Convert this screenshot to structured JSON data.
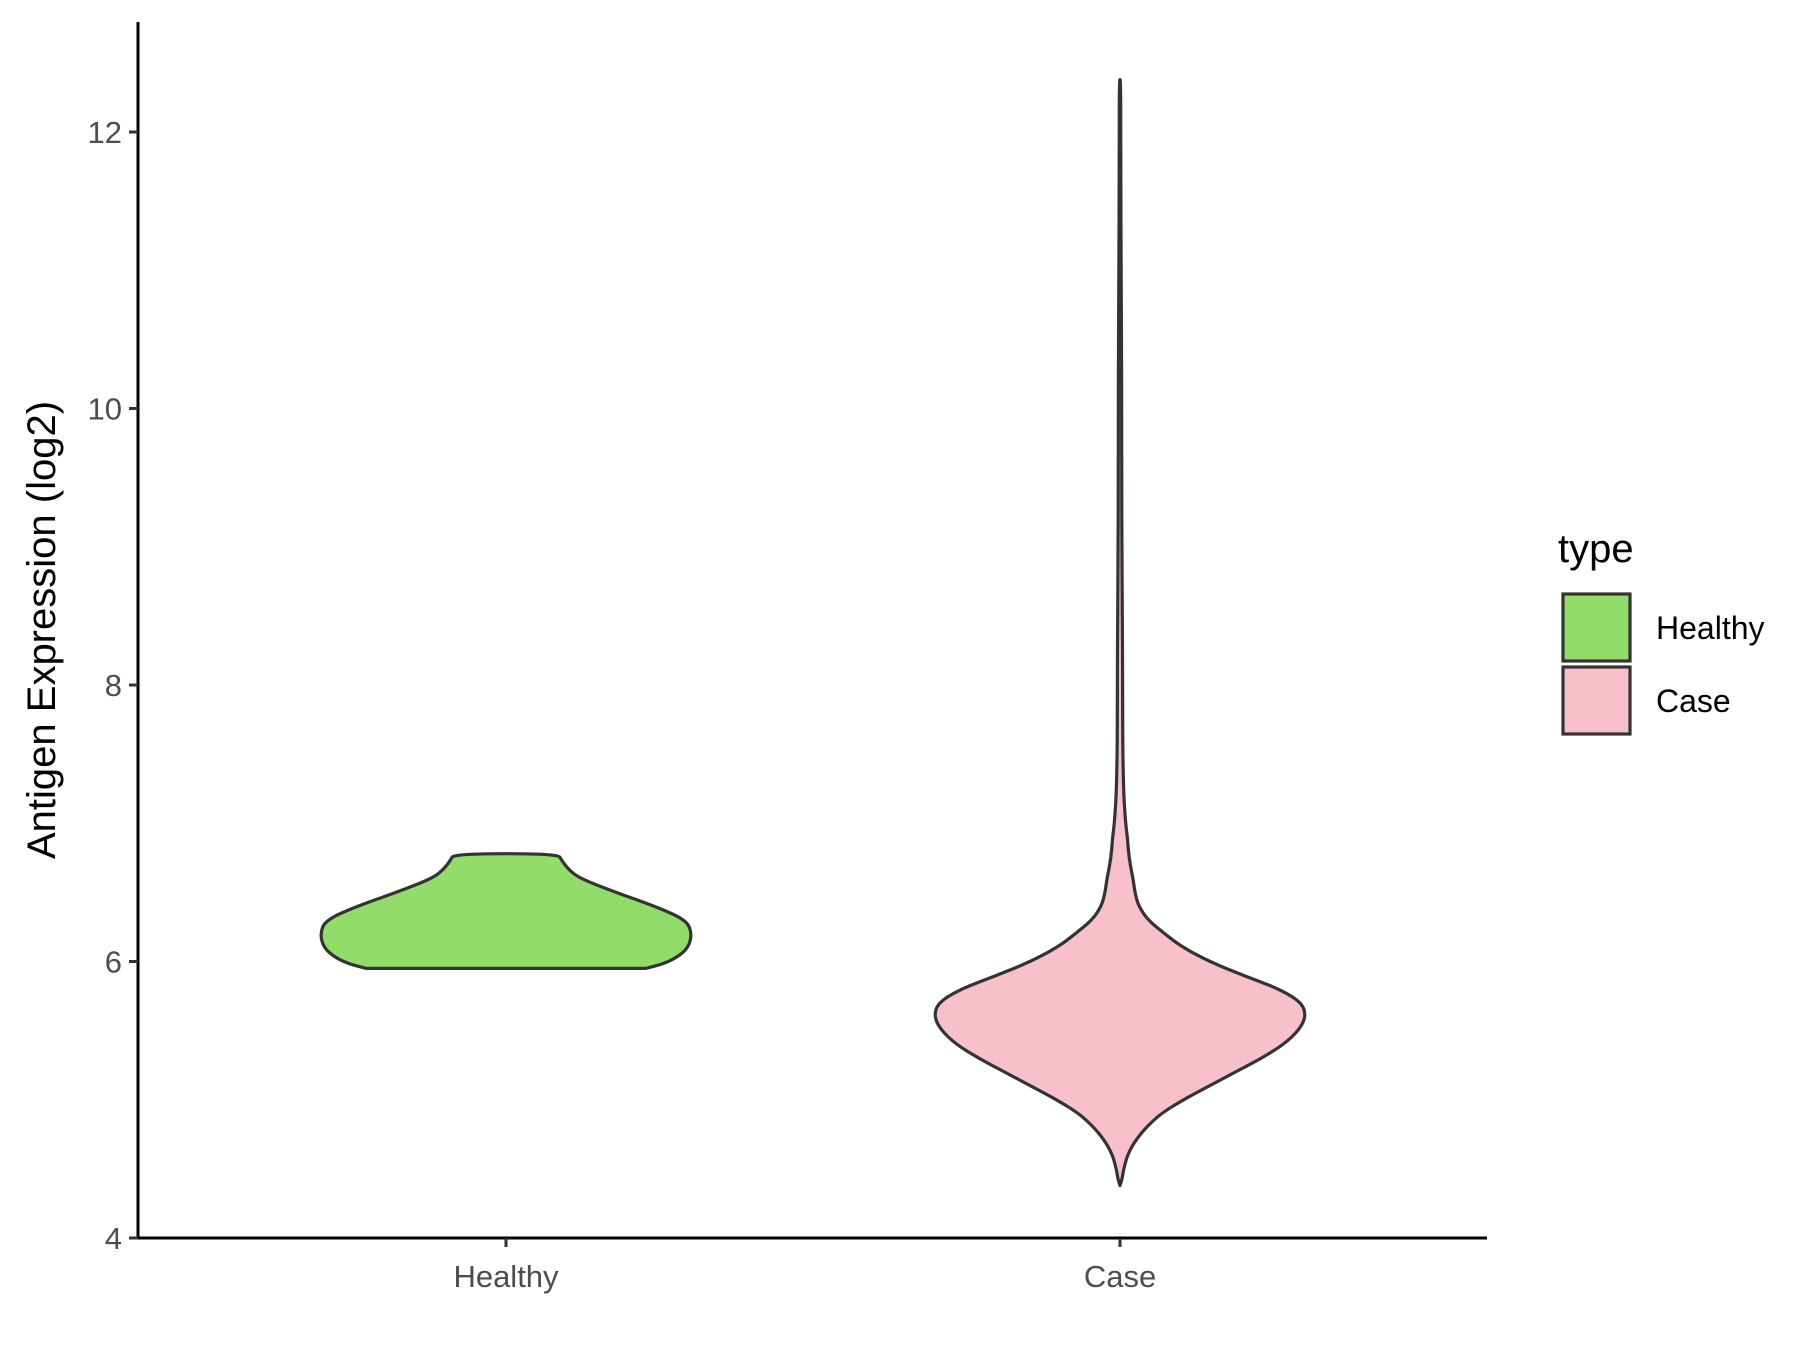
{
  "chart_data": {
    "type": "violin",
    "title": "",
    "xlabel": "",
    "ylabel": "Antigen Expression (log2)",
    "ylim": [
      4,
      12.8
    ],
    "y_ticks": [
      4,
      6,
      8,
      10,
      12
    ],
    "y_tick_labels": [
      "4",
      "6",
      "8",
      "10",
      "12"
    ],
    "categories": [
      "Healthy",
      "Case"
    ],
    "grid": false,
    "legend": {
      "title": "type",
      "position": "right",
      "entries": [
        {
          "label": "Healthy",
          "color": "#92dc6a"
        },
        {
          "label": "Case",
          "color": "#f8c0cb"
        }
      ]
    },
    "outline_color": "#333333",
    "series": [
      {
        "name": "Healthy",
        "color": "#92dc6a",
        "min": 5.95,
        "max": 6.78,
        "density": [
          {
            "y": 5.95,
            "w": 0.75
          },
          {
            "y": 5.98,
            "w": 0.84
          },
          {
            "y": 6.03,
            "w": 0.92
          },
          {
            "y": 6.1,
            "w": 0.98
          },
          {
            "y": 6.2,
            "w": 1.0
          },
          {
            "y": 6.3,
            "w": 0.97
          },
          {
            "y": 6.4,
            "w": 0.8
          },
          {
            "y": 6.5,
            "w": 0.59
          },
          {
            "y": 6.6,
            "w": 0.4
          },
          {
            "y": 6.66,
            "w": 0.34
          },
          {
            "y": 6.73,
            "w": 0.3
          },
          {
            "y": 6.78,
            "w": 0.28
          }
        ]
      },
      {
        "name": "Case",
        "color": "#f8c0cb",
        "min": 4.38,
        "max": 12.38,
        "density": [
          {
            "y": 4.38,
            "w": 0.0
          },
          {
            "y": 4.42,
            "w": 0.01
          },
          {
            "y": 4.5,
            "w": 0.02
          },
          {
            "y": 4.6,
            "w": 0.04
          },
          {
            "y": 4.7,
            "w": 0.08
          },
          {
            "y": 4.8,
            "w": 0.14
          },
          {
            "y": 4.9,
            "w": 0.22
          },
          {
            "y": 5.0,
            "w": 0.34
          },
          {
            "y": 5.1,
            "w": 0.48
          },
          {
            "y": 5.2,
            "w": 0.62
          },
          {
            "y": 5.3,
            "w": 0.76
          },
          {
            "y": 5.4,
            "w": 0.88
          },
          {
            "y": 5.5,
            "w": 0.96
          },
          {
            "y": 5.6,
            "w": 1.0
          },
          {
            "y": 5.7,
            "w": 0.98
          },
          {
            "y": 5.8,
            "w": 0.86
          },
          {
            "y": 5.9,
            "w": 0.66
          },
          {
            "y": 6.0,
            "w": 0.48
          },
          {
            "y": 6.1,
            "w": 0.34
          },
          {
            "y": 6.2,
            "w": 0.24
          },
          {
            "y": 6.3,
            "w": 0.15
          },
          {
            "y": 6.4,
            "w": 0.1
          },
          {
            "y": 6.5,
            "w": 0.08
          },
          {
            "y": 6.6,
            "w": 0.07
          },
          {
            "y": 6.7,
            "w": 0.055
          },
          {
            "y": 6.8,
            "w": 0.045
          },
          {
            "y": 6.9,
            "w": 0.04
          },
          {
            "y": 7.0,
            "w": 0.03
          },
          {
            "y": 7.2,
            "w": 0.02
          },
          {
            "y": 7.5,
            "w": 0.015
          },
          {
            "y": 8.0,
            "w": 0.014
          },
          {
            "y": 8.5,
            "w": 0.013
          },
          {
            "y": 9.0,
            "w": 0.01
          },
          {
            "y": 9.5,
            "w": 0.009
          },
          {
            "y": 10.0,
            "w": 0.009
          },
          {
            "y": 10.5,
            "w": 0.008
          },
          {
            "y": 11.0,
            "w": 0.006
          },
          {
            "y": 11.5,
            "w": 0.005
          },
          {
            "y": 12.0,
            "w": 0.004
          },
          {
            "y": 12.38,
            "w": 0.003
          }
        ]
      }
    ]
  }
}
